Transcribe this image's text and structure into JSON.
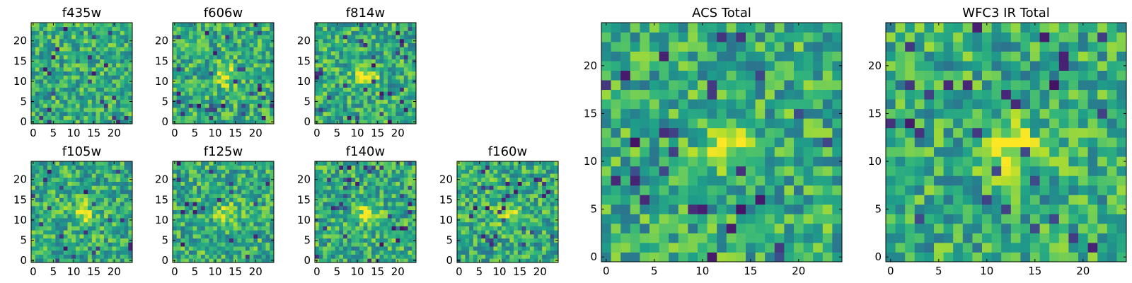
{
  "chart_data": [
    {
      "type": "heatmap",
      "title": "f435w",
      "x_ticks": [
        0,
        5,
        10,
        15,
        20
      ],
      "y_ticks": [
        0,
        5,
        10,
        15,
        20
      ],
      "grid_size": 25,
      "colormap": "viridis",
      "center_bright": false
    },
    {
      "type": "heatmap",
      "title": "f606w",
      "x_ticks": [
        0,
        5,
        10,
        15,
        20
      ],
      "y_ticks": [
        0,
        5,
        10,
        15,
        20
      ],
      "grid_size": 25,
      "colormap": "viridis",
      "center_bright": true
    },
    {
      "type": "heatmap",
      "title": "f814w",
      "x_ticks": [
        0,
        5,
        10,
        15,
        20
      ],
      "y_ticks": [
        0,
        5,
        10,
        15,
        20
      ],
      "grid_size": 25,
      "colormap": "viridis",
      "center_bright": true
    },
    {
      "type": "heatmap",
      "title": "f105w",
      "x_ticks": [
        0,
        5,
        10,
        15,
        20
      ],
      "y_ticks": [
        0,
        5,
        10,
        15,
        20
      ],
      "grid_size": 25,
      "colormap": "viridis",
      "center_bright": true
    },
    {
      "type": "heatmap",
      "title": "f125w",
      "x_ticks": [
        0,
        5,
        10,
        15,
        20
      ],
      "y_ticks": [
        0,
        5,
        10,
        15,
        20
      ],
      "grid_size": 25,
      "colormap": "viridis",
      "center_bright": true
    },
    {
      "type": "heatmap",
      "title": "f140w",
      "x_ticks": [
        0,
        5,
        10,
        15,
        20
      ],
      "y_ticks": [
        0,
        5,
        10,
        15,
        20
      ],
      "grid_size": 25,
      "colormap": "viridis",
      "center_bright": true
    },
    {
      "type": "heatmap",
      "title": "f160w",
      "x_ticks": [
        0,
        5,
        10,
        15,
        20
      ],
      "y_ticks": [
        0,
        5,
        10,
        15,
        20
      ],
      "grid_size": 25,
      "colormap": "viridis",
      "center_bright": true
    },
    {
      "type": "heatmap",
      "title": "ACS Total",
      "x_ticks": [
        0,
        5,
        10,
        15,
        20
      ],
      "y_ticks": [
        0,
        5,
        10,
        15,
        20
      ],
      "grid_size": 25,
      "colormap": "viridis",
      "center_bright": true
    },
    {
      "type": "heatmap",
      "title": "WFC3 IR Total",
      "x_ticks": [
        0,
        5,
        10,
        15,
        20
      ],
      "y_ticks": [
        0,
        5,
        10,
        15,
        20
      ],
      "grid_size": 25,
      "colormap": "viridis",
      "center_bright": true
    }
  ]
}
